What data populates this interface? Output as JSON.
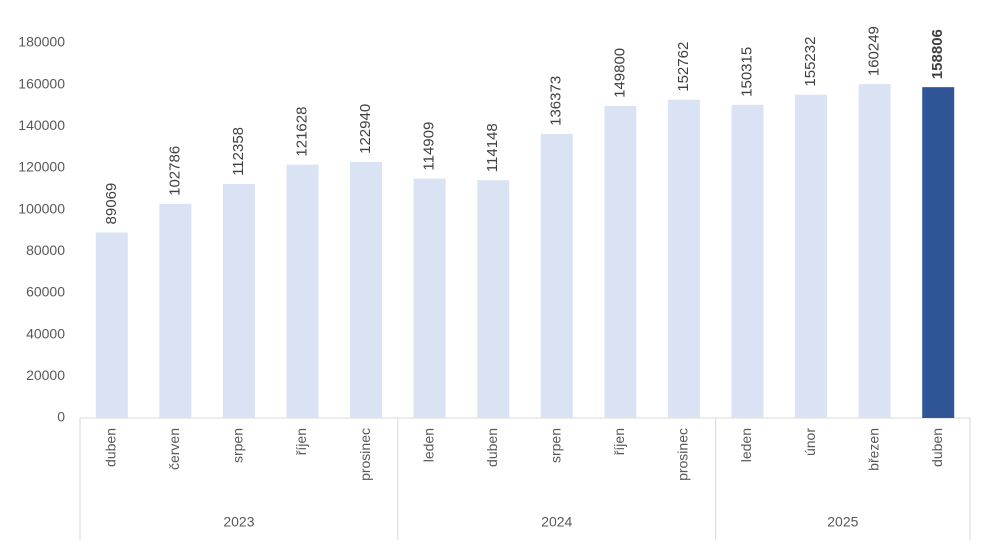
{
  "chart_data": {
    "type": "bar",
    "groups": [
      {
        "name": "2023",
        "categories": [
          "duben",
          "červen",
          "srpen",
          "říjen",
          "prosinec"
        ],
        "values": [
          89069,
          102786,
          112358,
          121628,
          122940
        ],
        "colors": [
          "#dae3f3",
          "#dae3f3",
          "#dae3f3",
          "#dae3f3",
          "#dae3f3"
        ]
      },
      {
        "name": "2024",
        "categories": [
          "leden",
          "duben",
          "srpen",
          "říjen",
          "prosinec"
        ],
        "values": [
          114909,
          114148,
          136373,
          149800,
          152762
        ],
        "colors": [
          "#dae3f3",
          "#dae3f3",
          "#dae3f3",
          "#dae3f3",
          "#dae3f3"
        ]
      },
      {
        "name": "2025",
        "categories": [
          "leden",
          "únor",
          "březen",
          "duben"
        ],
        "values": [
          150315,
          155232,
          160249,
          158806
        ],
        "colors": [
          "#dae3f3",
          "#dae3f3",
          "#dae3f3",
          "#2f5597"
        ]
      }
    ],
    "highlight_color": "#2f5597",
    "ylim": [
      0,
      180000
    ],
    "yticks": [
      0,
      20000,
      40000,
      60000,
      80000,
      100000,
      120000,
      140000,
      160000,
      180000
    ],
    "grid": false
  }
}
